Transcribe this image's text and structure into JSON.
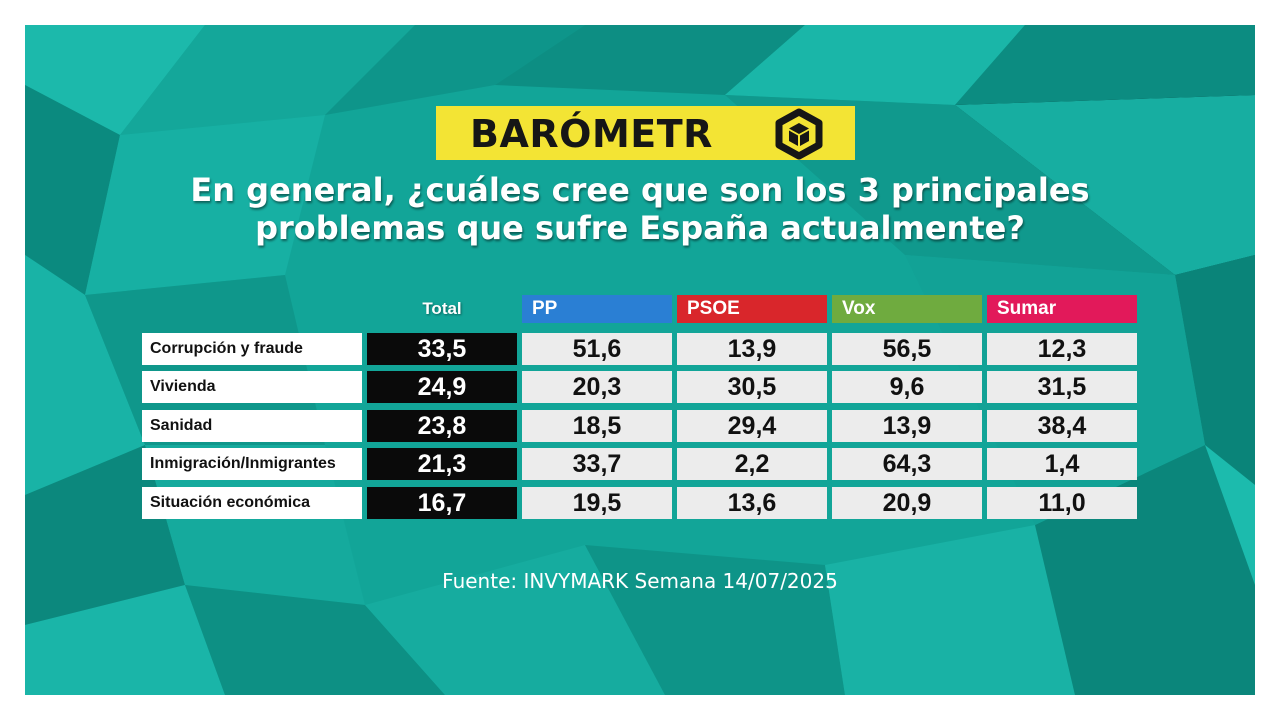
{
  "header": {
    "logo_text": "BARÓMETR",
    "question_line1": "En general, ¿cuáles cree que son los 3 principales",
    "question_line2": "problemas que sufre España actualmente?"
  },
  "colors": {
    "background": "#11a497",
    "logo_yellow": "#f3e434",
    "total_cell": "#0a0a0a",
    "value_cell": "#ececec"
  },
  "chart_data": {
    "type": "table",
    "title": "En general, ¿cuáles cree que son los 3 principales problemas que sufre España actualmente?",
    "columns": [
      {
        "name": "Total",
        "color": ""
      },
      {
        "name": "PP",
        "color": "#2a7fd4"
      },
      {
        "name": "PSOE",
        "color": "#d9262b"
      },
      {
        "name": "Vox",
        "color": "#6fab3f"
      },
      {
        "name": "Sumar",
        "color": "#e2195a"
      }
    ],
    "rows": [
      {
        "label": "Corrupción y fraude",
        "values": [
          "33,5",
          "51,6",
          "13,9",
          "56,5",
          "12,3"
        ]
      },
      {
        "label": "Vivienda",
        "values": [
          "24,9",
          "20,3",
          "30,5",
          "9,6",
          "31,5"
        ]
      },
      {
        "label": "Sanidad",
        "values": [
          "23,8",
          "18,5",
          "29,4",
          "13,9",
          "38,4"
        ]
      },
      {
        "label": "Inmigración/Inmigrantes",
        "values": [
          "21,3",
          "33,7",
          "2,2",
          "64,3",
          "1,4"
        ]
      },
      {
        "label": "Situación económica",
        "values": [
          "16,7",
          "19,5",
          "13,6",
          "20,9",
          "11,0"
        ]
      }
    ]
  },
  "footer": {
    "source": "Fuente: INVYMARK Semana 14/07/2025"
  }
}
